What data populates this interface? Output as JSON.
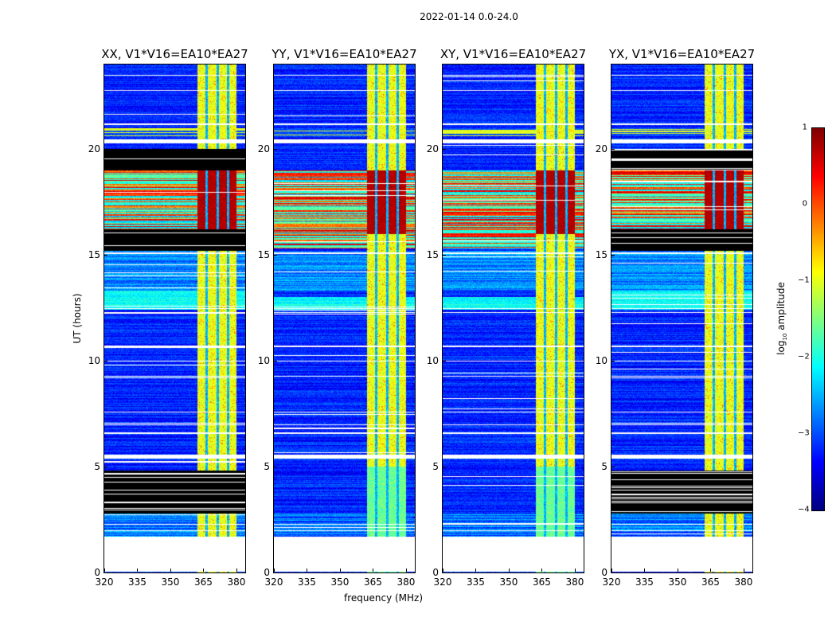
{
  "chart_data": {
    "type": "heatmap",
    "title": "2022-01-14 0.0-24.0",
    "xlabel": "frequency (MHz)",
    "ylabel": "UT (hours)",
    "xlim": [
      320,
      384
    ],
    "ylim": [
      0,
      24
    ],
    "xticks": [
      "320",
      "335",
      "350",
      "365",
      "380"
    ],
    "xtick_values": [
      320,
      335,
      350,
      365,
      380
    ],
    "yticks": [
      "0",
      "5",
      "10",
      "15",
      "20"
    ],
    "ytick_values": [
      0,
      5,
      10,
      15,
      20
    ],
    "colorbar": {
      "label_prefix": "log",
      "label_sub": "10",
      "label_suffix": " amplitude",
      "range": [
        -4,
        1
      ],
      "colormap": "jet",
      "ticks": [
        "1",
        "0",
        "−1",
        "−2",
        "−3",
        "−4"
      ],
      "tick_values": [
        1,
        0,
        -1,
        -2,
        -3,
        -4
      ]
    },
    "features": {
      "no_data_hours": [
        [
          0.05,
          1.7
        ]
      ],
      "rfi_band_mhz": [
        362,
        380
      ],
      "rfi_gaps_mhz": [
        366.2,
        371.2,
        376.2
      ],
      "background_log_amp": -3.2,
      "rfi_log_amp": -1.0,
      "bright_interval_hours": [
        15.3,
        19.0
      ],
      "blank_lines_hours": [
        2.0,
        2.3,
        5.5,
        6.6,
        7.0,
        7.6,
        9.3,
        10.0,
        10.7,
        12.3,
        12.5,
        15.1,
        20.4,
        21.2,
        22.8,
        23.5
      ]
    },
    "panels": [
      {
        "title": "XX, V1*V16=EA10*EA27",
        "flagged_hours": [
          [
            2.8,
            4.8
          ],
          [
            15.2,
            16.2
          ],
          [
            19.0,
            20.0
          ]
        ],
        "cyan_interval": [
          12.4,
          13.3
        ]
      },
      {
        "title": "YY, V1*V16=EA10*EA27",
        "flagged_hours": [],
        "cyan_interval": [
          12.4,
          13.0
        ]
      },
      {
        "title": "XY, V1*V16=EA10*EA27",
        "flagged_hours": [],
        "cyan_interval": [
          12.4,
          13.0
        ]
      },
      {
        "title": "YX, V1*V16=EA10*EA27",
        "flagged_hours": [
          [
            2.8,
            4.8
          ],
          [
            15.2,
            16.2
          ],
          [
            19.0,
            20.0
          ]
        ],
        "cyan_interval": [
          12.4,
          13.3
        ]
      }
    ]
  }
}
